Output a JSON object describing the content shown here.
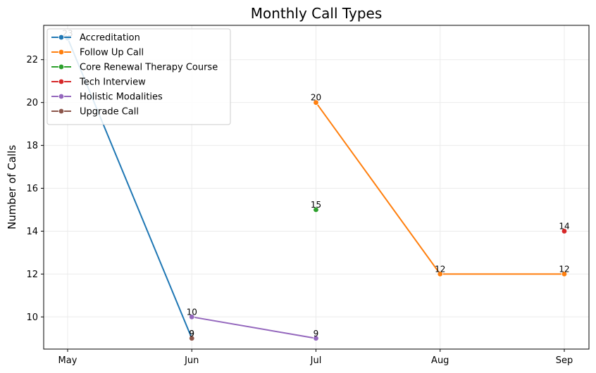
{
  "chart_data": {
    "type": "line",
    "title": "Monthly Call Types",
    "xlabel": "",
    "ylabel": "Number of Calls",
    "categories": [
      "May",
      "Jun",
      "Jul",
      "Aug",
      "Sep"
    ],
    "ylim": [
      8.5,
      23.6
    ],
    "yticks": [
      10,
      12,
      14,
      16,
      18,
      20,
      22
    ],
    "grid": true,
    "legend_position": "top-left",
    "series": [
      {
        "name": "Accreditation",
        "color": "#1f77b4",
        "points": [
          [
            "May",
            23
          ],
          [
            "Jun",
            9
          ]
        ]
      },
      {
        "name": "Follow Up Call",
        "color": "#ff7f0e",
        "points": [
          [
            "Jul",
            20
          ],
          [
            "Aug",
            12
          ],
          [
            "Sep",
            12
          ]
        ]
      },
      {
        "name": "Core Renewal Therapy Course",
        "color": "#2ca02c",
        "points": [
          [
            "Jul",
            15
          ]
        ]
      },
      {
        "name": "Tech Interview",
        "color": "#d62728",
        "points": [
          [
            "Sep",
            14
          ]
        ]
      },
      {
        "name": "Holistic Modalities",
        "color": "#9467bd",
        "points": [
          [
            "Jun",
            10
          ],
          [
            "Jul",
            9
          ]
        ]
      },
      {
        "name": "Upgrade Call",
        "color": "#8c564b",
        "points": [
          [
            "Jun",
            9
          ]
        ]
      }
    ]
  }
}
